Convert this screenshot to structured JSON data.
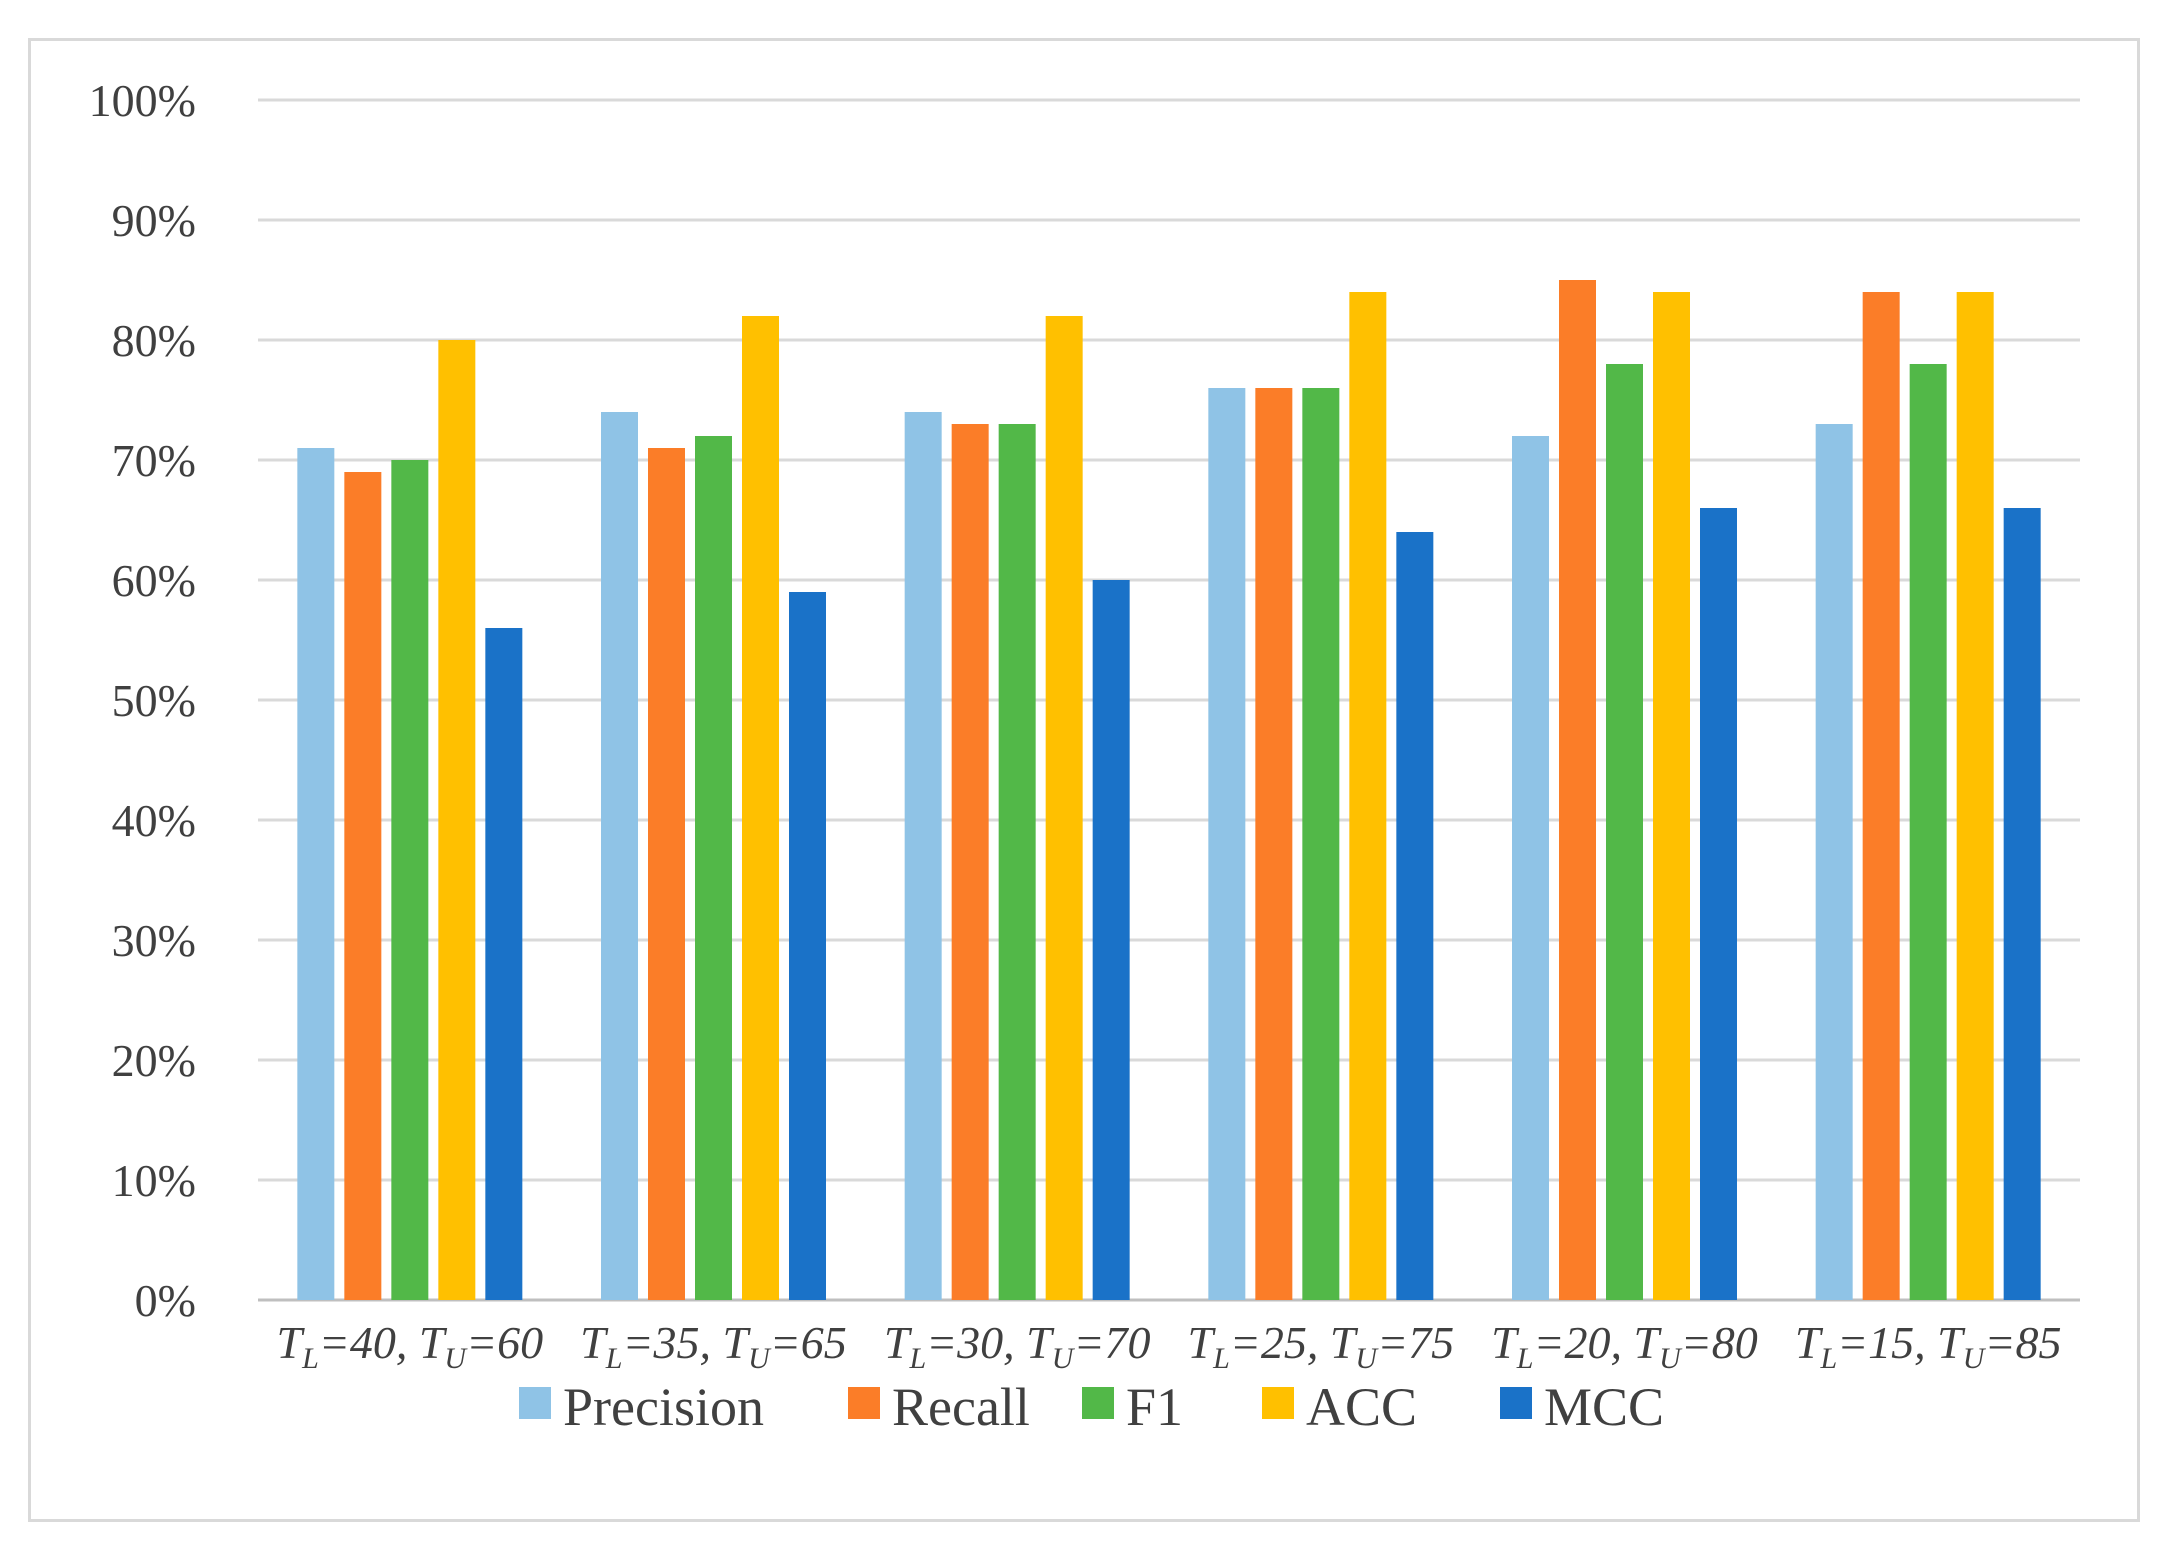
{
  "chart_data": {
    "type": "bar",
    "title": "",
    "xlabel": "",
    "ylabel": "",
    "ylim": [
      0,
      100
    ],
    "y_ticks": [
      "0%",
      "10%",
      "20%",
      "30%",
      "40%",
      "50%",
      "60%",
      "70%",
      "80%",
      "90%",
      "100%"
    ],
    "grid": true,
    "legend_position": "bottom",
    "categories": [
      {
        "main": "T",
        "sub1": "L",
        "mid1": "=40, ",
        "main2": "T",
        "sub2": "U",
        "mid2": "=60"
      },
      {
        "main": "T",
        "sub1": "L",
        "mid1": "=35, ",
        "main2": "T",
        "sub2": "U",
        "mid2": "=65"
      },
      {
        "main": "T",
        "sub1": "L",
        "mid1": "=30, ",
        "main2": "T",
        "sub2": "U",
        "mid2": "=70"
      },
      {
        "main": "T",
        "sub1": "L",
        "mid1": "=25, ",
        "main2": "T",
        "sub2": "U",
        "mid2": "=75"
      },
      {
        "main": "T",
        "sub1": "L",
        "mid1": "=20, ",
        "main2": "T",
        "sub2": "U",
        "mid2": "=80"
      },
      {
        "main": "T",
        "sub1": "L",
        "mid1": "=15, ",
        "main2": "T",
        "sub2": "U",
        "mid2": "=85"
      }
    ],
    "series": [
      {
        "name": "Precision",
        "color": "#8fc3e6",
        "values": [
          71,
          74,
          74,
          76,
          72,
          73
        ]
      },
      {
        "name": "Recall",
        "color": "#fb7d28",
        "values": [
          69,
          71,
          73,
          76,
          85,
          84
        ]
      },
      {
        "name": "F1",
        "color": "#52b848",
        "values": [
          70,
          72,
          73,
          76,
          78,
          78
        ]
      },
      {
        "name": "ACC",
        "color": "#ffc000",
        "values": [
          80,
          82,
          82,
          84,
          84,
          84
        ]
      },
      {
        "name": "MCC",
        "color": "#1a72c8",
        "values": [
          56,
          59,
          60,
          64,
          66,
          66
        ]
      }
    ]
  }
}
